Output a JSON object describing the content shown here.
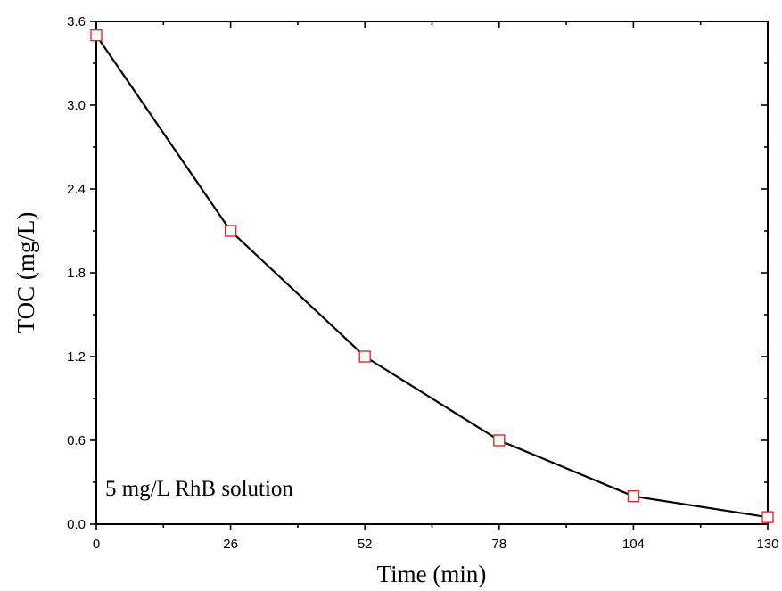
{
  "chart_data": {
    "type": "line",
    "xlabel": "Time (min)",
    "ylabel": "TOC (mg/L)",
    "xlim": [
      0,
      130
    ],
    "ylim": [
      0,
      3.6
    ],
    "xticks": [
      "0",
      "26",
      "52",
      "78",
      "104",
      "130"
    ],
    "yticks": [
      "0.0",
      "0.6",
      "1.2",
      "1.8",
      "2.4",
      "3.0",
      "3.6"
    ],
    "annotation": "5 mg/L RhB solution",
    "grid": false,
    "series": [
      {
        "x": [
          0,
          26,
          52,
          78,
          104,
          130
        ],
        "y": [
          3.5,
          2.1,
          1.2,
          0.6,
          0.2,
          0.05
        ],
        "line_color": "#000000",
        "marker": "square",
        "marker_color": "#e8262a"
      }
    ]
  }
}
